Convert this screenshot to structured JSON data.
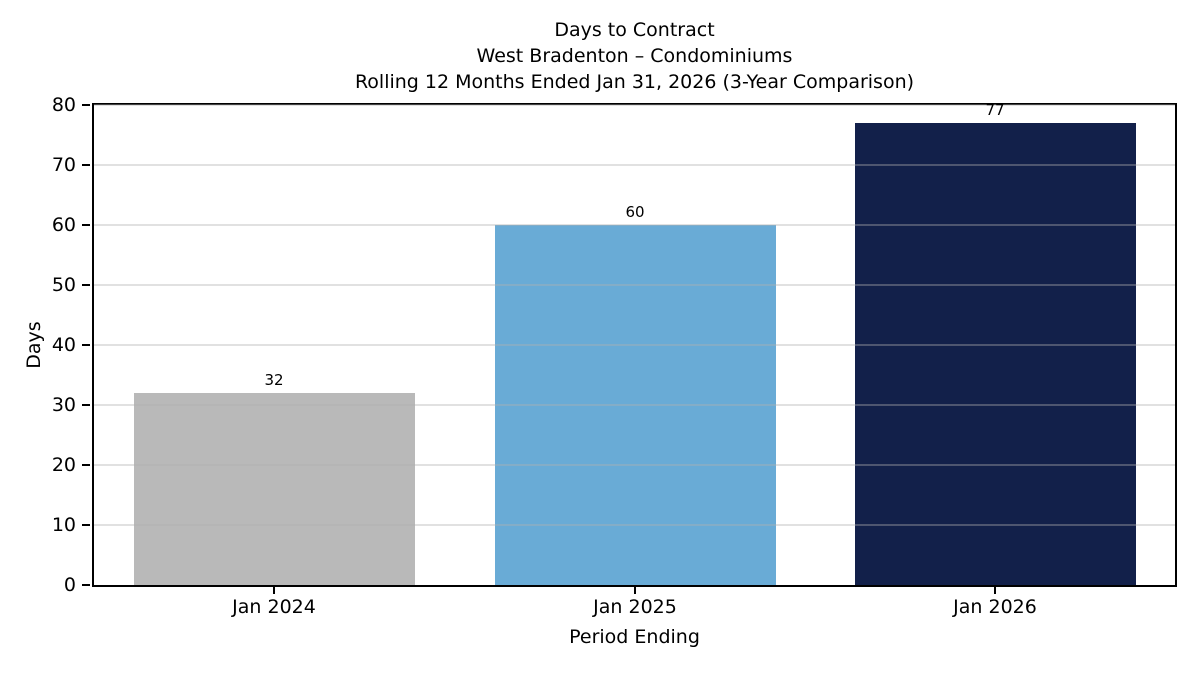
{
  "chart_data": {
    "type": "bar",
    "title": "Days to Contract",
    "subtitle_market": "West Bradenton – Condominiums",
    "subtitle_period": "Rolling 12 Months Ended Jan 31, 2026 (3-Year Comparison)",
    "categories": [
      "Jan 2024",
      "Jan 2025",
      "Jan 2026"
    ],
    "values": [
      32,
      60,
      77
    ],
    "bar_colors": [
      "#b9b9b9",
      "#69abd6",
      "#12204a"
    ],
    "xlabel": "Period Ending",
    "ylabel": "Days",
    "ylim": [
      0,
      80
    ],
    "yticks": [
      0,
      10,
      20,
      30,
      40,
      50,
      60,
      70,
      80
    ],
    "grid": "horizontal-over-bars",
    "legend": "none",
    "background": "#ffffff",
    "text_color": "#000000",
    "grid_color": "#b0b0b0",
    "bar_width_fraction": 0.78
  }
}
